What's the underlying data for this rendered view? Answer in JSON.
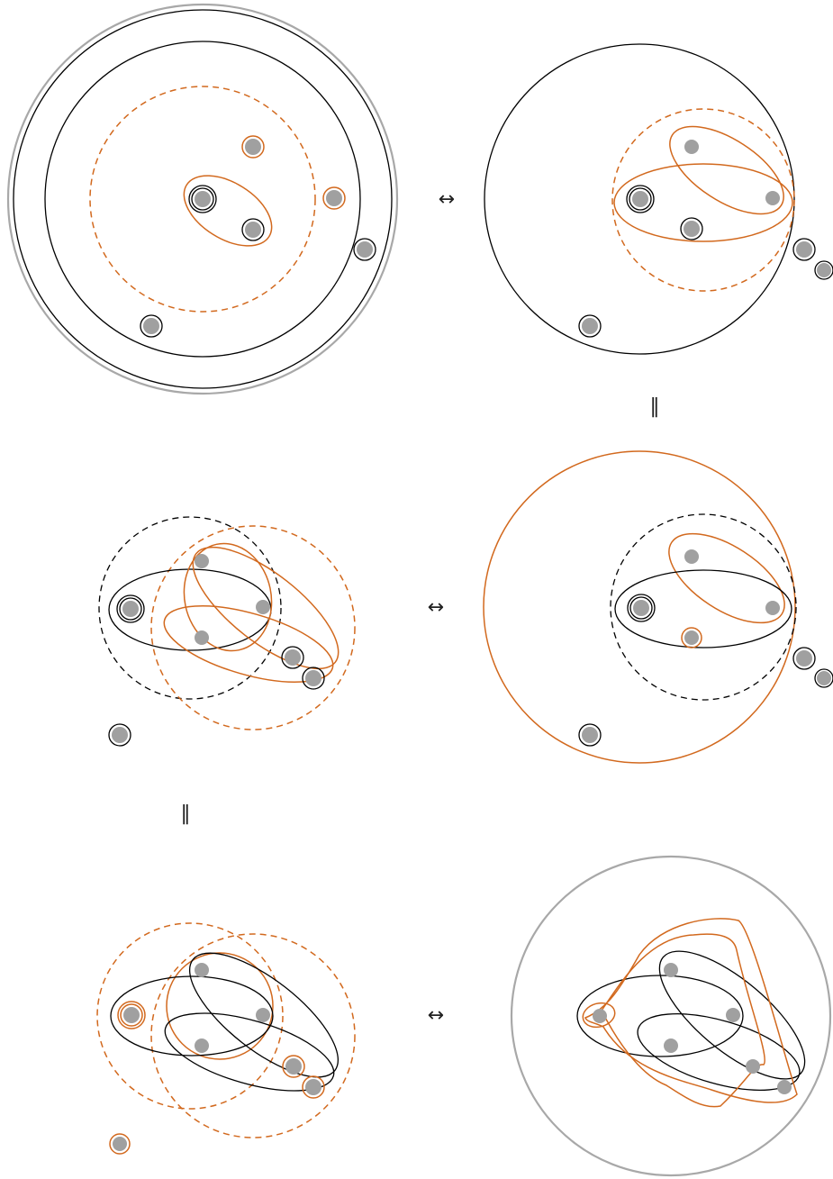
{
  "symbols": {
    "equivalence": "↔",
    "equals": "‖"
  },
  "colors": {
    "black": "#000000",
    "orange": "#d2691e",
    "gray_outline": "#a8a8a8",
    "dot_fill": "#a0a0a0"
  },
  "panels": [
    {
      "id": "row1-left"
    },
    {
      "id": "row1-right"
    },
    {
      "id": "row2-left"
    },
    {
      "id": "row2-right"
    },
    {
      "id": "row3-left"
    },
    {
      "id": "row3-right"
    }
  ]
}
